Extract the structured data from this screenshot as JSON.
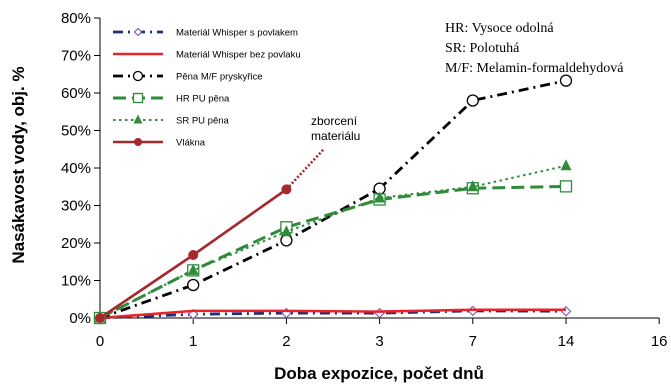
{
  "chart_data": {
    "type": "line",
    "title": "",
    "xlabel": "Doba expozice, počet dnů",
    "ylabel": "Nasákavost vody, obj. %",
    "x_tick_labels": [
      "0",
      "1",
      "2",
      "3",
      "7",
      "14",
      "16"
    ],
    "y_tick_labels": [
      "0%",
      "10%",
      "20%",
      "30%",
      "40%",
      "50%",
      "60%",
      "70%",
      "80%"
    ],
    "ylim": [
      0,
      80
    ],
    "grid": false,
    "legend_position": "top-left",
    "notes": [
      "HR: Vysoce odolná",
      "SR: Polotuhá",
      "M/F: Melamin-formaldehydová"
    ],
    "annotation": {
      "lines": [
        "zborcení",
        "materiálu"
      ],
      "x_index": 2.6,
      "y": 44
    },
    "series": [
      {
        "name": "Materiál Whisper s povlakem",
        "color": "#1f2d7a",
        "dash": "dashdot",
        "marker": "diamond-open",
        "marker_color": "#8a5fb0",
        "x_index": [
          0,
          1,
          2,
          3,
          4,
          5
        ],
        "values": [
          0,
          1,
          1.3,
          1.3,
          1.9,
          1.8
        ]
      },
      {
        "name": "Materiál Whisper bez povlaku",
        "color": "#e8232a",
        "dash": "solid",
        "marker": "none",
        "marker_color": "#c02424",
        "x_index": [
          0,
          1,
          2,
          3,
          4,
          5
        ],
        "values": [
          0,
          1.9,
          1.9,
          1.7,
          2.2,
          2.2
        ]
      },
      {
        "name": "Pěna M/F pryskyřice",
        "color": "#000000",
        "dash": "dashdot",
        "marker": "circle-open",
        "marker_color": "#000000",
        "x_index": [
          0,
          1,
          2,
          3,
          4,
          5
        ],
        "values": [
          0,
          8.8,
          20.7,
          34.5,
          58,
          63.3
        ]
      },
      {
        "name": "HR PU pěna",
        "color": "#2e8b3a",
        "dash": "longdash",
        "marker": "square-open",
        "marker_color": "#2e8b3a",
        "x_index": [
          0,
          1,
          2,
          3,
          4,
          5
        ],
        "values": [
          0,
          12.7,
          24.2,
          31.6,
          34.6,
          35.1
        ]
      },
      {
        "name": "SR PU pěna",
        "color": "#2e8b3a",
        "dash": "dotted",
        "marker": "triangle-filled",
        "marker_color": "#2e8b3a",
        "x_index": [
          0,
          1,
          2,
          3,
          4,
          5
        ],
        "values": [
          0,
          12.7,
          23,
          32,
          35,
          40.6
        ]
      },
      {
        "name": "Vlákna",
        "color": "#a5282d",
        "dash": "solid",
        "marker": "circle-filled",
        "marker_color": "#a5282d",
        "x_index": [
          0,
          1,
          2
        ],
        "values": [
          0,
          16.8,
          34.3
        ],
        "extension": {
          "x_index": [
            2,
            2.4
          ],
          "values": [
            34.3,
            45
          ]
        }
      }
    ]
  }
}
